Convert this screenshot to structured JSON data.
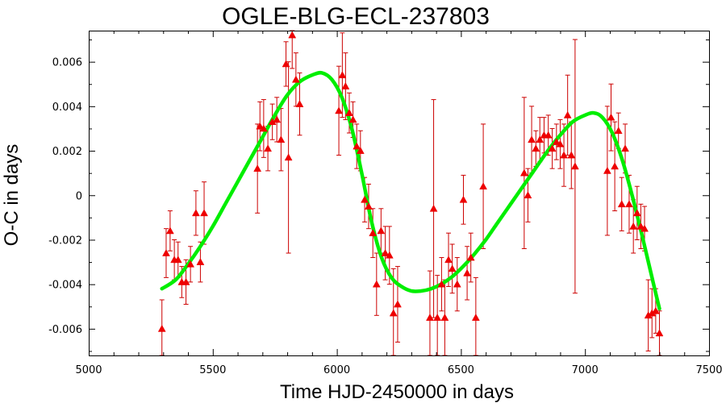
{
  "chart_data": {
    "type": "scatter",
    "title": "OGLE-BLG-ECL-237803",
    "xlabel": "Time HJD-2450000 in days",
    "ylabel": "O-C in days",
    "xlim": [
      5000,
      7500
    ],
    "ylim": [
      -0.0072,
      0.0074
    ],
    "x_ticks": [
      5000,
      5500,
      6000,
      6500,
      7000,
      7500
    ],
    "x_tick_labels": [
      "5000",
      "5500",
      "6000",
      "6500",
      "7000",
      "7500"
    ],
    "y_ticks": [
      -0.006,
      -0.004,
      -0.002,
      0,
      0.002,
      0.004,
      0.006
    ],
    "y_tick_labels": [
      "-0.006",
      "-0.004",
      "-0.002",
      "0",
      "0.002",
      "0.004",
      "0.006"
    ],
    "grid": false,
    "legend": "none",
    "colors": {
      "points": "#ee0000",
      "errorbars": "#cc0000",
      "fit": "#00ee00"
    },
    "series": [
      {
        "kind": "points-with-errorbars",
        "marker": "triangle",
        "points": [
          {
            "x": 5295,
            "y": -0.006,
            "err": 0.0013
          },
          {
            "x": 5312,
            "y": -0.0026,
            "err": 0.0011
          },
          {
            "x": 5328,
            "y": -0.0016,
            "err": 0.0009
          },
          {
            "x": 5345,
            "y": -0.0029,
            "err": 0.0009
          },
          {
            "x": 5360,
            "y": -0.0029,
            "err": 0.0008
          },
          {
            "x": 5375,
            "y": -0.0039,
            "err": 0.0007
          },
          {
            "x": 5392,
            "y": -0.0039,
            "err": 0.001
          },
          {
            "x": 5410,
            "y": -0.0031,
            "err": 0.0008
          },
          {
            "x": 5432,
            "y": -0.0008,
            "err": 0.001
          },
          {
            "x": 5450,
            "y": -0.003,
            "err": 0.0009
          },
          {
            "x": 5465,
            "y": -0.0008,
            "err": 0.0014
          },
          {
            "x": 5680,
            "y": 0.0012,
            "err": 0.002
          },
          {
            "x": 5690,
            "y": 0.0031,
            "err": 0.0011
          },
          {
            "x": 5705,
            "y": 0.003,
            "err": 0.0013
          },
          {
            "x": 5722,
            "y": 0.0021,
            "err": 0.001
          },
          {
            "x": 5740,
            "y": 0.0033,
            "err": 0.0008
          },
          {
            "x": 5758,
            "y": 0.0034,
            "err": 0.001
          },
          {
            "x": 5775,
            "y": 0.0025,
            "err": 0.0014
          },
          {
            "x": 5795,
            "y": 0.0059,
            "err": 0.001
          },
          {
            "x": 5805,
            "y": 0.0017,
            "err": 0.0043
          },
          {
            "x": 5820,
            "y": 0.0072,
            "err": 0.0015
          },
          {
            "x": 5835,
            "y": 0.0052,
            "err": 0.0012
          },
          {
            "x": 5850,
            "y": 0.0041,
            "err": 0.0014
          },
          {
            "x": 6008,
            "y": 0.0038,
            "err": 0.002
          },
          {
            "x": 6022,
            "y": 0.0054,
            "err": 0.0019
          },
          {
            "x": 6035,
            "y": 0.0049,
            "err": 0.0015
          },
          {
            "x": 6050,
            "y": 0.0037,
            "err": 0.0009
          },
          {
            "x": 6065,
            "y": 0.0034,
            "err": 0.0008
          },
          {
            "x": 6080,
            "y": 0.0022,
            "err": 0.001
          },
          {
            "x": 6095,
            "y": 0.002,
            "err": 0.0009
          },
          {
            "x": 6112,
            "y": -0.0002,
            "err": 0.001
          },
          {
            "x": 6128,
            "y": -0.0005,
            "err": 0.001
          },
          {
            "x": 6145,
            "y": -0.0017,
            "err": 0.0011
          },
          {
            "x": 6160,
            "y": -0.004,
            "err": 0.0014
          },
          {
            "x": 6178,
            "y": -0.0016,
            "err": 0.001
          },
          {
            "x": 6195,
            "y": -0.0026,
            "err": 0.0012
          },
          {
            "x": 6212,
            "y": -0.0027,
            "err": 0.0013
          },
          {
            "x": 6228,
            "y": -0.0053,
            "err": 0.002
          },
          {
            "x": 6245,
            "y": -0.0049,
            "err": 0.0017
          },
          {
            "x": 6375,
            "y": -0.0055,
            "err": 0.0021
          },
          {
            "x": 6390,
            "y": -0.0006,
            "err": 0.0049
          },
          {
            "x": 6405,
            "y": -0.0055,
            "err": 0.0019
          },
          {
            "x": 6422,
            "y": -0.004,
            "err": 0.0012
          },
          {
            "x": 6435,
            "y": -0.0055,
            "err": 0.0017
          },
          {
            "x": 6450,
            "y": -0.0029,
            "err": 0.0012
          },
          {
            "x": 6465,
            "y": -0.0033,
            "err": 0.0011
          },
          {
            "x": 6485,
            "y": -0.004,
            "err": 0.0012
          },
          {
            "x": 6510,
            "y": -0.0002,
            "err": 0.0011
          },
          {
            "x": 6525,
            "y": -0.0035,
            "err": 0.0012
          },
          {
            "x": 6540,
            "y": -0.0028,
            "err": 0.0011
          },
          {
            "x": 6560,
            "y": -0.0055,
            "err": 0.0018
          },
          {
            "x": 6590,
            "y": 0.0004,
            "err": 0.0028
          },
          {
            "x": 6755,
            "y": 0.001,
            "err": 0.0034
          },
          {
            "x": 6770,
            "y": 0.0,
            "err": 0.0012
          },
          {
            "x": 6785,
            "y": 0.0025,
            "err": 0.0015
          },
          {
            "x": 6802,
            "y": 0.0021,
            "err": 0.0008
          },
          {
            "x": 6818,
            "y": 0.0025,
            "err": 0.001
          },
          {
            "x": 6835,
            "y": 0.0027,
            "err": 0.0008
          },
          {
            "x": 6852,
            "y": 0.0027,
            "err": 0.0009
          },
          {
            "x": 6868,
            "y": 0.0021,
            "err": 0.0009
          },
          {
            "x": 6885,
            "y": 0.0024,
            "err": 0.0008
          },
          {
            "x": 6900,
            "y": 0.0023,
            "err": 0.0011
          },
          {
            "x": 6915,
            "y": 0.0018,
            "err": 0.0014
          },
          {
            "x": 6930,
            "y": 0.0036,
            "err": 0.0018
          },
          {
            "x": 6945,
            "y": 0.0018,
            "err": 0.0015
          },
          {
            "x": 6960,
            "y": 0.0013,
            "err": 0.0057
          },
          {
            "x": 7090,
            "y": 0.0011,
            "err": 0.0029
          },
          {
            "x": 7105,
            "y": 0.0035,
            "err": 0.0015
          },
          {
            "x": 7120,
            "y": 0.0013,
            "err": 0.002
          },
          {
            "x": 7135,
            "y": 0.0029,
            "err": 0.0008
          },
          {
            "x": 7148,
            "y": -0.0004,
            "err": 0.0012
          },
          {
            "x": 7162,
            "y": 0.0021,
            "err": 0.0011
          },
          {
            "x": 7178,
            "y": -0.0004,
            "err": 0.0013
          },
          {
            "x": 7195,
            "y": -0.0014,
            "err": 0.0012
          },
          {
            "x": 7210,
            "y": -0.0008,
            "err": 0.0012
          },
          {
            "x": 7225,
            "y": -0.0014,
            "err": 0.001
          },
          {
            "x": 7240,
            "y": -0.0015,
            "err": 0.001
          },
          {
            "x": 7255,
            "y": -0.0054,
            "err": 0.0016
          },
          {
            "x": 7270,
            "y": -0.0053,
            "err": 0.0011
          },
          {
            "x": 7285,
            "y": -0.0052,
            "err": 0.001
          },
          {
            "x": 7300,
            "y": -0.0062,
            "err": 0.001
          }
        ]
      },
      {
        "kind": "fit-line",
        "x": [
          5295,
          5350,
          5400,
          5450,
          5500,
          5550,
          5600,
          5650,
          5700,
          5750,
          5800,
          5850,
          5900,
          5940,
          5980,
          6020,
          6060,
          6100,
          6140,
          6180,
          6220,
          6260,
          6300,
          6340,
          6380,
          6420,
          6460,
          6500,
          6550,
          6600,
          6650,
          6700,
          6750,
          6800,
          6850,
          6900,
          6950,
          7000,
          7035,
          7070,
          7110,
          7150,
          7190,
          7230,
          7270,
          7300
        ],
        "y": [
          -0.0042,
          -0.0038,
          -0.0031,
          -0.0023,
          -0.0014,
          -0.0004,
          0.0006,
          0.0016,
          0.0026,
          0.0036,
          0.0045,
          0.0051,
          0.0054,
          0.0055,
          0.0052,
          0.0044,
          0.003,
          0.001,
          -0.0012,
          -0.0028,
          -0.0037,
          -0.0041,
          -0.0043,
          -0.0043,
          -0.0042,
          -0.004,
          -0.0037,
          -0.0033,
          -0.0027,
          -0.002,
          -0.0012,
          -0.0004,
          0.0004,
          0.0012,
          0.002,
          0.0027,
          0.0033,
          0.0036,
          0.0037,
          0.0035,
          0.0028,
          0.0016,
          0.0,
          -0.0018,
          -0.0037,
          -0.0051
        ]
      }
    ]
  }
}
